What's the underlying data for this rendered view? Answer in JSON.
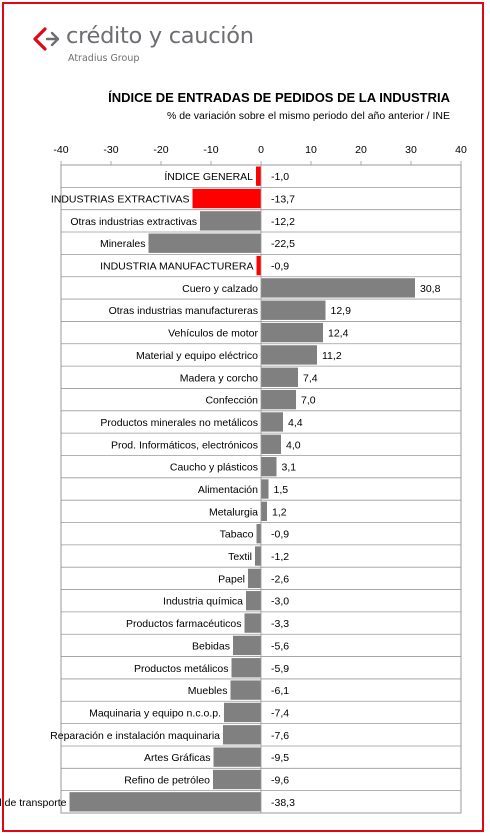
{
  "brand": {
    "name": "crédito y caución",
    "sub": "Atradius Group",
    "accent": "#e30613"
  },
  "chart_data": {
    "type": "bar",
    "orientation": "horizontal",
    "title": "ÍNDICE DE ENTRADAS DE PEDIDOS DE LA INDUSTRIA",
    "subtitle": "% de variación sobre el mismo periodo del año anterior / INE",
    "xlim": [
      -40,
      40
    ],
    "xticks": [
      -40,
      -30,
      -20,
      -10,
      0,
      10,
      20,
      30,
      40
    ],
    "grid": true,
    "bar_color": "#808080",
    "highlight_color": "#ff0000",
    "categories": [
      "ÍNDICE GENERAL",
      "INDUSTRIAS EXTRACTIVAS",
      "Otras industrias  extractivas",
      "Minerales",
      "INDUSTRIA MANUFACTURERA",
      "Cuero y calzado",
      "Otras industrias manufactureras",
      "Vehículos de motor",
      "Material y equipo eléctrico",
      "Madera y corcho",
      "Confección",
      "Productos minerales no metálicos",
      "Prod. Informáticos, electrónicos",
      "Caucho y plásticos",
      "Alimentación",
      "Metalurgia",
      "Tabaco",
      "Textil",
      "Papel",
      "Industria química",
      "Productos farmacéuticos",
      "Bebidas",
      "Productos metálicos",
      "Muebles",
      "Maquinaria y equipo n.c.o.p.",
      "Reparación e instalación maquinaria",
      "Artes Gráficas",
      "Refino de petróleo",
      "Otro material de transporte"
    ],
    "values": [
      -1.0,
      -13.7,
      -12.2,
      -22.5,
      -0.9,
      30.8,
      12.9,
      12.4,
      11.2,
      7.4,
      7.0,
      4.4,
      4.0,
      3.1,
      1.5,
      1.2,
      -0.9,
      -1.2,
      -2.6,
      -3.0,
      -3.3,
      -5.6,
      -5.9,
      -6.1,
      -7.4,
      -7.6,
      -9.5,
      -9.6,
      -38.3
    ],
    "value_labels": [
      "-1,0",
      "-13,7",
      "-12,2",
      "-22,5",
      "-0,9",
      "30,8",
      "12,9",
      "12,4",
      "11,2",
      "7,4",
      "7,0",
      "4,4",
      "4,0",
      "3,1",
      "1,5",
      "1,2",
      "-0,9",
      "-1,2",
      "-2,6",
      "-3,0",
      "-3,3",
      "-5,6",
      "-5,9",
      "-6,1",
      "-7,4",
      "-7,6",
      "-9,5",
      "-9,6",
      "-38,3"
    ],
    "highlighted": [
      true,
      true,
      false,
      false,
      true,
      false,
      false,
      false,
      false,
      false,
      false,
      false,
      false,
      false,
      false,
      false,
      false,
      false,
      false,
      false,
      false,
      false,
      false,
      false,
      false,
      false,
      false,
      false,
      false
    ]
  }
}
